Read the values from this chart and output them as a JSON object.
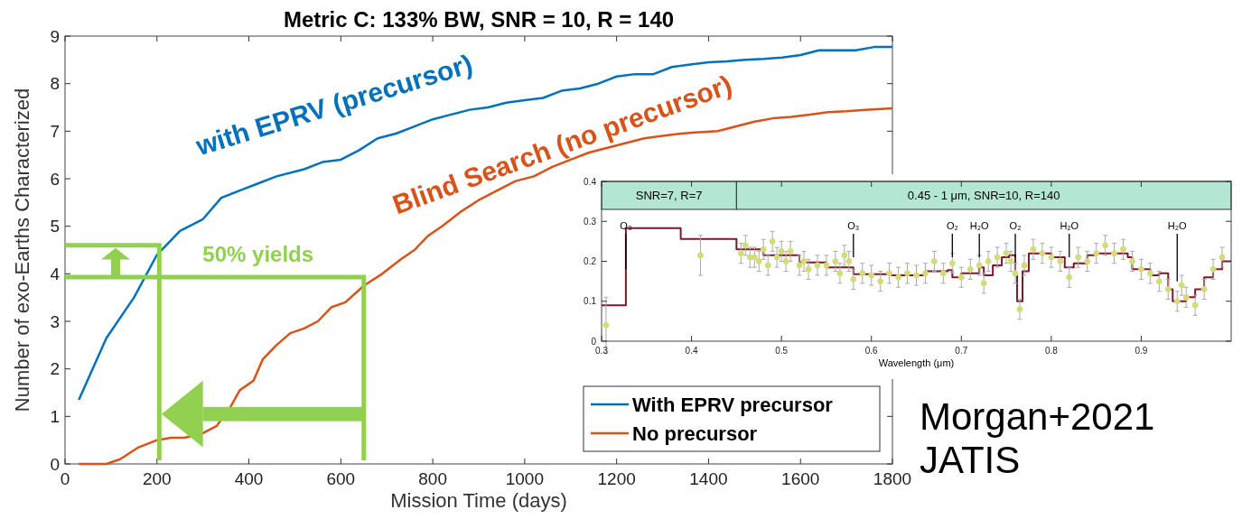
{
  "chart_data": [
    {
      "type": "line",
      "title": "Metric C: 133% BW, SNR = 10, R = 140",
      "xlabel": "Mission Time (days)",
      "ylabel": "Number of exo-Earths Characterized",
      "xlim": [
        0,
        1800
      ],
      "ylim": [
        0,
        9
      ],
      "xticks": [
        0,
        200,
        400,
        600,
        800,
        1000,
        1200,
        1400,
        1600,
        1800
      ],
      "yticks": [
        0,
        1,
        2,
        3,
        4,
        5,
        6,
        7,
        8,
        9
      ],
      "legend": "bottom right",
      "marker": "none",
      "line_style": "solid",
      "series": [
        {
          "name": "With EPRV precursor",
          "color": "#0072bd",
          "x": [
            30,
            90,
            150,
            200,
            250,
            300,
            340,
            380,
            420,
            460,
            520,
            560,
            600,
            640,
            680,
            720,
            760,
            800,
            840,
            880,
            920,
            960,
            1000,
            1040,
            1080,
            1120,
            1160,
            1200,
            1240,
            1280,
            1320,
            1360,
            1400,
            1440,
            1480,
            1520,
            1560,
            1600,
            1640,
            1680,
            1720,
            1760,
            1800
          ],
          "values": [
            1.35,
            2.65,
            3.5,
            4.4,
            4.9,
            5.15,
            5.6,
            5.75,
            5.9,
            6.05,
            6.2,
            6.35,
            6.4,
            6.6,
            6.85,
            6.95,
            7.1,
            7.25,
            7.35,
            7.45,
            7.5,
            7.6,
            7.65,
            7.7,
            7.85,
            7.9,
            8.0,
            8.15,
            8.2,
            8.2,
            8.35,
            8.4,
            8.45,
            8.47,
            8.5,
            8.52,
            8.55,
            8.6,
            8.7,
            8.7,
            8.7,
            8.77,
            8.77
          ]
        },
        {
          "name": "No precursor",
          "color": "#d95319",
          "x": [
            30,
            90,
            120,
            160,
            200,
            230,
            260,
            300,
            330,
            360,
            380,
            410,
            430,
            460,
            490,
            520,
            550,
            580,
            610,
            650,
            690,
            730,
            760,
            790,
            820,
            860,
            900,
            940,
            980,
            1020,
            1060,
            1100,
            1140,
            1180,
            1220,
            1260,
            1300,
            1340,
            1380,
            1420,
            1460,
            1500,
            1540,
            1580,
            1620,
            1660,
            1700,
            1740,
            1800
          ],
          "values": [
            0,
            0,
            0.1,
            0.35,
            0.5,
            0.55,
            0.55,
            0.65,
            0.8,
            1.2,
            1.55,
            1.75,
            2.2,
            2.5,
            2.75,
            2.85,
            3.0,
            3.3,
            3.4,
            3.75,
            4.0,
            4.3,
            4.5,
            4.8,
            5.0,
            5.3,
            5.55,
            5.75,
            5.95,
            6.05,
            6.25,
            6.4,
            6.55,
            6.65,
            6.75,
            6.85,
            6.9,
            6.95,
            6.98,
            7.0,
            7.1,
            7.2,
            7.27,
            7.3,
            7.35,
            7.4,
            7.42,
            7.45,
            7.48
          ]
        }
      ],
      "annotations": [
        "with EPRV (precursor)",
        "Blind Search (no precursor)",
        "50% yields",
        "Morgan+2021 JATIS"
      ]
    },
    {
      "type": "scatter",
      "xlabel": "Wavelength (μm)",
      "xlim": [
        0.3,
        1.0
      ],
      "ylim": [
        0,
        0.4
      ],
      "xticks": [
        0.3,
        0.4,
        0.5,
        0.6,
        0.7,
        0.8,
        0.9
      ],
      "yticks": [
        0,
        0.1,
        0.2,
        0.3,
        0.4
      ],
      "bands": [
        {
          "axis": "x",
          "from": 0.3,
          "to": 0.45,
          "label": "SNR=7, R=7",
          "color": "#b3e6d3"
        },
        {
          "axis": "x",
          "from": 0.45,
          "to": 1.0,
          "label": "0.45 - 1 μm, SNR=10, R=140",
          "color": "#b3e6d3"
        }
      ],
      "series": [
        {
          "type": "step",
          "color": "#7b1a2a",
          "x": [
            0.3,
            0.327,
            0.388,
            0.45,
            0.48,
            0.52,
            0.55,
            0.58,
            0.62,
            0.66,
            0.685,
            0.69,
            0.7,
            0.72,
            0.725,
            0.735,
            0.745,
            0.753,
            0.76,
            0.762,
            0.768,
            0.775,
            0.8,
            0.815,
            0.825,
            0.84,
            0.85,
            0.885,
            0.89,
            0.91,
            0.92,
            0.93,
            0.935,
            0.95,
            0.96,
            0.97,
            0.98,
            0.99,
            1.0
          ],
          "values": [
            0.09,
            0.283,
            0.256,
            0.23,
            0.215,
            0.197,
            0.185,
            0.168,
            0.165,
            0.175,
            0.178,
            0.16,
            0.17,
            0.185,
            0.165,
            0.19,
            0.21,
            0.215,
            0.17,
            0.1,
            0.175,
            0.22,
            0.21,
            0.185,
            0.195,
            0.215,
            0.22,
            0.21,
            0.18,
            0.165,
            0.17,
            0.13,
            0.1,
            0.11,
            0.13,
            0.16,
            0.18,
            0.2,
            0.2
          ]
        },
        {
          "type": "scatter",
          "marker": "circle",
          "color": "#d4dc7a",
          "x": [
            0.305,
            0.41,
            0.455,
            0.46,
            0.465,
            0.47,
            0.475,
            0.48,
            0.485,
            0.49,
            0.495,
            0.5,
            0.505,
            0.51,
            0.52,
            0.525,
            0.53,
            0.54,
            0.55,
            0.56,
            0.565,
            0.57,
            0.575,
            0.58,
            0.59,
            0.6,
            0.61,
            0.62,
            0.63,
            0.64,
            0.65,
            0.66,
            0.67,
            0.68,
            0.69,
            0.7,
            0.71,
            0.72,
            0.725,
            0.73,
            0.74,
            0.75,
            0.755,
            0.76,
            0.765,
            0.77,
            0.78,
            0.79,
            0.8,
            0.81,
            0.82,
            0.83,
            0.84,
            0.85,
            0.86,
            0.87,
            0.88,
            0.89,
            0.9,
            0.91,
            0.92,
            0.93,
            0.94,
            0.945,
            0.95,
            0.96,
            0.97,
            0.98,
            0.99
          ],
          "values": [
            0.04,
            0.215,
            0.22,
            0.24,
            0.21,
            0.21,
            0.2,
            0.23,
            0.19,
            0.25,
            0.21,
            0.225,
            0.2,
            0.225,
            0.19,
            0.2,
            0.18,
            0.19,
            0.19,
            0.2,
            0.17,
            0.215,
            0.2,
            0.155,
            0.17,
            0.165,
            0.15,
            0.17,
            0.16,
            0.17,
            0.165,
            0.17,
            0.2,
            0.17,
            0.195,
            0.16,
            0.18,
            0.19,
            0.145,
            0.2,
            0.21,
            0.22,
            0.2,
            0.17,
            0.08,
            0.19,
            0.23,
            0.22,
            0.21,
            0.2,
            0.16,
            0.21,
            0.2,
            0.22,
            0.24,
            0.22,
            0.23,
            0.2,
            0.18,
            0.17,
            0.15,
            0.13,
            0.1,
            0.14,
            0.11,
            0.09,
            0.13,
            0.18,
            0.21
          ],
          "errors": [
            0.07,
            0.05,
            0.025,
            0.025,
            0.025,
            0.025,
            0.025,
            0.025,
            0.025,
            0.025,
            0.025,
            0.025,
            0.025,
            0.025,
            0.025,
            0.025,
            0.025,
            0.025,
            0.025,
            0.025,
            0.025,
            0.025,
            0.025,
            0.025,
            0.025,
            0.025,
            0.025,
            0.025,
            0.025,
            0.025,
            0.025,
            0.025,
            0.025,
            0.025,
            0.025,
            0.025,
            0.025,
            0.025,
            0.025,
            0.025,
            0.025,
            0.025,
            0.025,
            0.025,
            0.025,
            0.025,
            0.025,
            0.025,
            0.025,
            0.025,
            0.025,
            0.025,
            0.025,
            0.025,
            0.025,
            0.025,
            0.025,
            0.025,
            0.025,
            0.025,
            0.025,
            0.025,
            0.025,
            0.025,
            0.025,
            0.025,
            0.025,
            0.025,
            0.025
          ]
        }
      ],
      "annotations": [
        {
          "text": "O₃",
          "x": 0.327,
          "y": 0.18
        },
        {
          "text": "O₃",
          "x": 0.58,
          "y": 0.21
        },
        {
          "text": "O₂",
          "x": 0.69,
          "y": 0.21
        },
        {
          "text": "H₂O",
          "x": 0.72,
          "y": 0.21
        },
        {
          "text": "O₂",
          "x": 0.76,
          "y": 0.21
        },
        {
          "text": "H₂O",
          "x": 0.82,
          "y": 0.21
        },
        {
          "text": "H₂O",
          "x": 0.94,
          "y": 0.15
        }
      ]
    }
  ]
}
